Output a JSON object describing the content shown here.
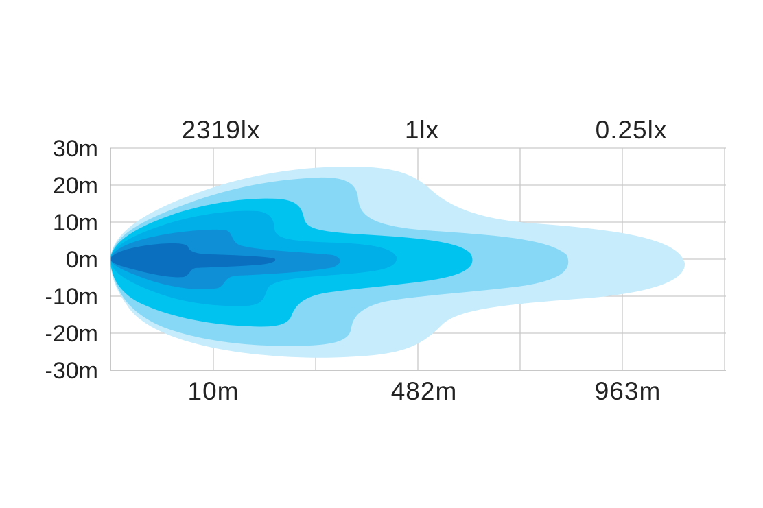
{
  "chart_data": {
    "type": "area",
    "title": "",
    "xlabel": "",
    "ylabel": "",
    "ylim": [
      -30,
      30
    ],
    "grid": true,
    "y_ticks": [
      "30m",
      "20m",
      "10m",
      "0m",
      "-10m",
      "-20m",
      "-30m"
    ],
    "x_tick_labels": [
      "10m",
      "482m",
      "963m"
    ],
    "lux_labels": [
      "2319lx",
      "1lx",
      "0.25lx"
    ],
    "beam_zones": [
      {
        "order": 1,
        "color": "#c7ecfb"
      },
      {
        "order": 2,
        "color": "#86d8f6"
      },
      {
        "order": 3,
        "color": "#00c4ef"
      },
      {
        "order": 4,
        "color": "#00aee8"
      },
      {
        "order": 5,
        "color": "#0e8fd6"
      },
      {
        "order": 6,
        "color": "#0a6fbf"
      }
    ],
    "grid_color": "#c9c9c9",
    "text_color": "#222222"
  }
}
